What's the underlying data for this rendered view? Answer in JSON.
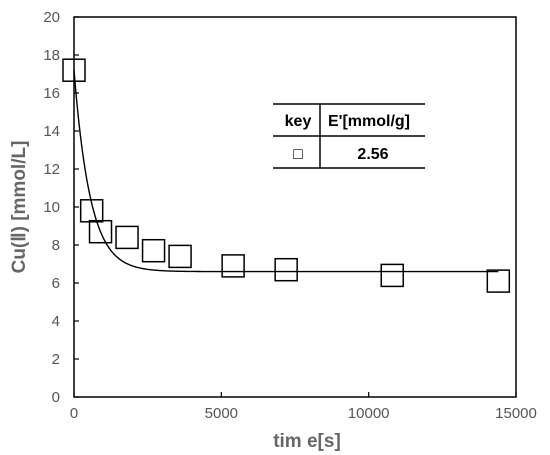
{
  "chart_data": {
    "type": "scatter",
    "xlabel": "tim e[s]",
    "ylabel": "Cu(Ⅱ) [mmol/L]",
    "xlim": [
      0,
      15000
    ],
    "ylim": [
      0,
      20
    ],
    "xticks": [
      0,
      5000,
      10000,
      15000
    ],
    "yticks": [
      0,
      2,
      4,
      6,
      8,
      10,
      12,
      14,
      16,
      18,
      20
    ],
    "grid": false,
    "points": {
      "marker": "square",
      "x": [
        0,
        600,
        900,
        1800,
        2700,
        3600,
        5400,
        7200,
        10800,
        14400
      ],
      "y": [
        17.2,
        9.8,
        8.7,
        8.4,
        7.7,
        7.4,
        6.9,
        6.7,
        6.4,
        6.1
      ]
    },
    "fit_curve": {
      "equilibrium": 6.6,
      "initial": 17.2,
      "rate": 0.0018
    },
    "legend_table": {
      "headers": [
        "key",
        "E'[mmol/g]"
      ],
      "rows": [
        {
          "key_symbol": "□",
          "value": "2.56"
        }
      ]
    },
    "colors": {
      "axis": "#000000",
      "curve": "#000000",
      "marker_edge": "#000000",
      "marker_fill": "#ffffff",
      "tick_label": "#555555",
      "axis_title": "#666666"
    }
  }
}
